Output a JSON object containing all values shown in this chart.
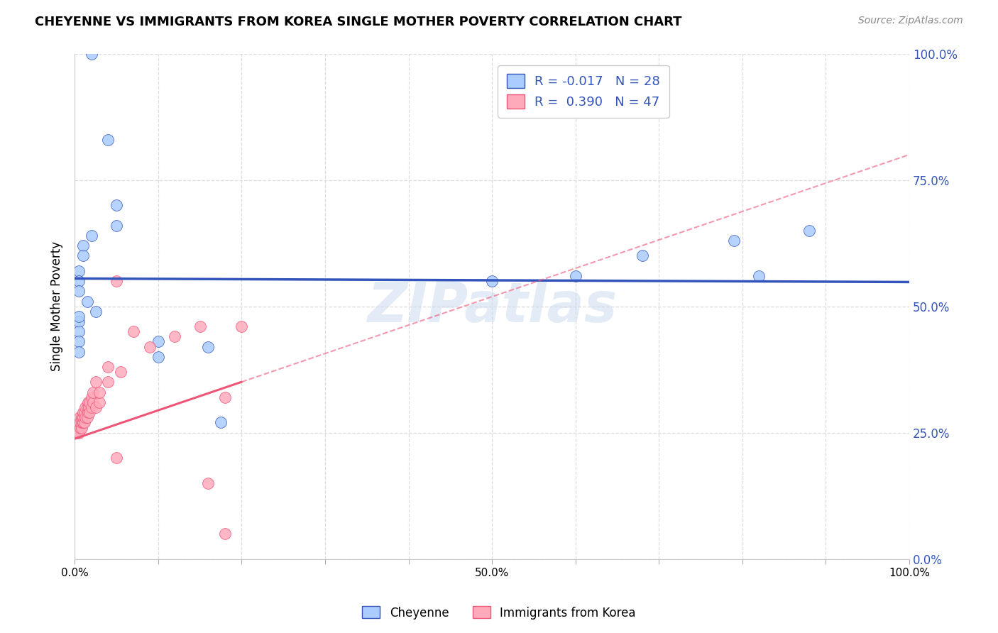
{
  "title": "CHEYENNE VS IMMIGRANTS FROM KOREA SINGLE MOTHER POVERTY CORRELATION CHART",
  "source": "Source: ZipAtlas.com",
  "ylabel": "Single Mother Poverty",
  "legend_label1": "Cheyenne",
  "legend_label2": "Immigrants from Korea",
  "r1": "-0.017",
  "n1": "28",
  "r2": "0.390",
  "n2": "47",
  "cheyenne_color": "#aaccff",
  "korea_color": "#ffaabb",
  "trend1_color": "#3355bb",
  "trend2_color": "#ee5577",
  "watermark_color": "#c8d8ee",
  "cheyenne_x": [
    0.02,
    0.04,
    0.05,
    0.05,
    0.02,
    0.01,
    0.01,
    0.005,
    0.005,
    0.005,
    0.015,
    0.025,
    0.005,
    0.005,
    0.005,
    0.005,
    0.1,
    0.1,
    0.16,
    0.175,
    0.5,
    0.6,
    0.68,
    0.79,
    0.82,
    0.88,
    0.005,
    0.005
  ],
  "cheyenne_y": [
    1.0,
    0.83,
    0.7,
    0.66,
    0.64,
    0.62,
    0.6,
    0.57,
    0.55,
    0.53,
    0.51,
    0.49,
    0.47,
    0.45,
    0.43,
    0.41,
    0.4,
    0.43,
    0.42,
    0.27,
    0.55,
    0.56,
    0.6,
    0.63,
    0.56,
    0.65,
    0.48,
    0.27
  ],
  "korea_x": [
    0.003,
    0.003,
    0.005,
    0.005,
    0.006,
    0.007,
    0.007,
    0.008,
    0.008,
    0.008,
    0.01,
    0.01,
    0.01,
    0.01,
    0.01,
    0.012,
    0.012,
    0.013,
    0.013,
    0.015,
    0.015,
    0.016,
    0.016,
    0.017,
    0.018,
    0.018,
    0.02,
    0.02,
    0.022,
    0.022,
    0.025,
    0.025,
    0.03,
    0.03,
    0.04,
    0.04,
    0.05,
    0.055,
    0.07,
    0.09,
    0.12,
    0.15,
    0.18,
    0.2,
    0.05,
    0.16,
    0.18
  ],
  "korea_y": [
    0.26,
    0.25,
    0.27,
    0.25,
    0.28,
    0.26,
    0.27,
    0.26,
    0.27,
    0.28,
    0.27,
    0.28,
    0.27,
    0.28,
    0.29,
    0.27,
    0.29,
    0.28,
    0.3,
    0.28,
    0.3,
    0.29,
    0.31,
    0.3,
    0.29,
    0.31,
    0.3,
    0.32,
    0.31,
    0.33,
    0.3,
    0.35,
    0.31,
    0.33,
    0.35,
    0.38,
    0.55,
    0.37,
    0.45,
    0.42,
    0.44,
    0.46,
    0.32,
    0.46,
    0.2,
    0.15,
    0.05
  ],
  "ytick_values": [
    0.0,
    0.25,
    0.5,
    0.75,
    1.0
  ],
  "ytick_labels": [
    "0.0%",
    "25.0%",
    "50.0%",
    "75.0%",
    "100.0%"
  ],
  "xtick_values": [
    0.0,
    0.1,
    0.2,
    0.3,
    0.4,
    0.5,
    0.6,
    0.7,
    0.8,
    0.9,
    1.0
  ],
  "xtick_labels": [
    "0.0%",
    "",
    "",
    "",
    "",
    "50.0%",
    "",
    "",
    "",
    "",
    "100.0%"
  ],
  "background_color": "#ffffff",
  "grid_color": "#dddddd",
  "cheyenne_trend_y_start": 0.555,
  "cheyenne_trend_y_end": 0.548,
  "korea_trend_x_start": 0.0,
  "korea_trend_y_start": 0.238,
  "korea_trend_x_end": 1.0,
  "korea_trend_y_end": 0.8
}
